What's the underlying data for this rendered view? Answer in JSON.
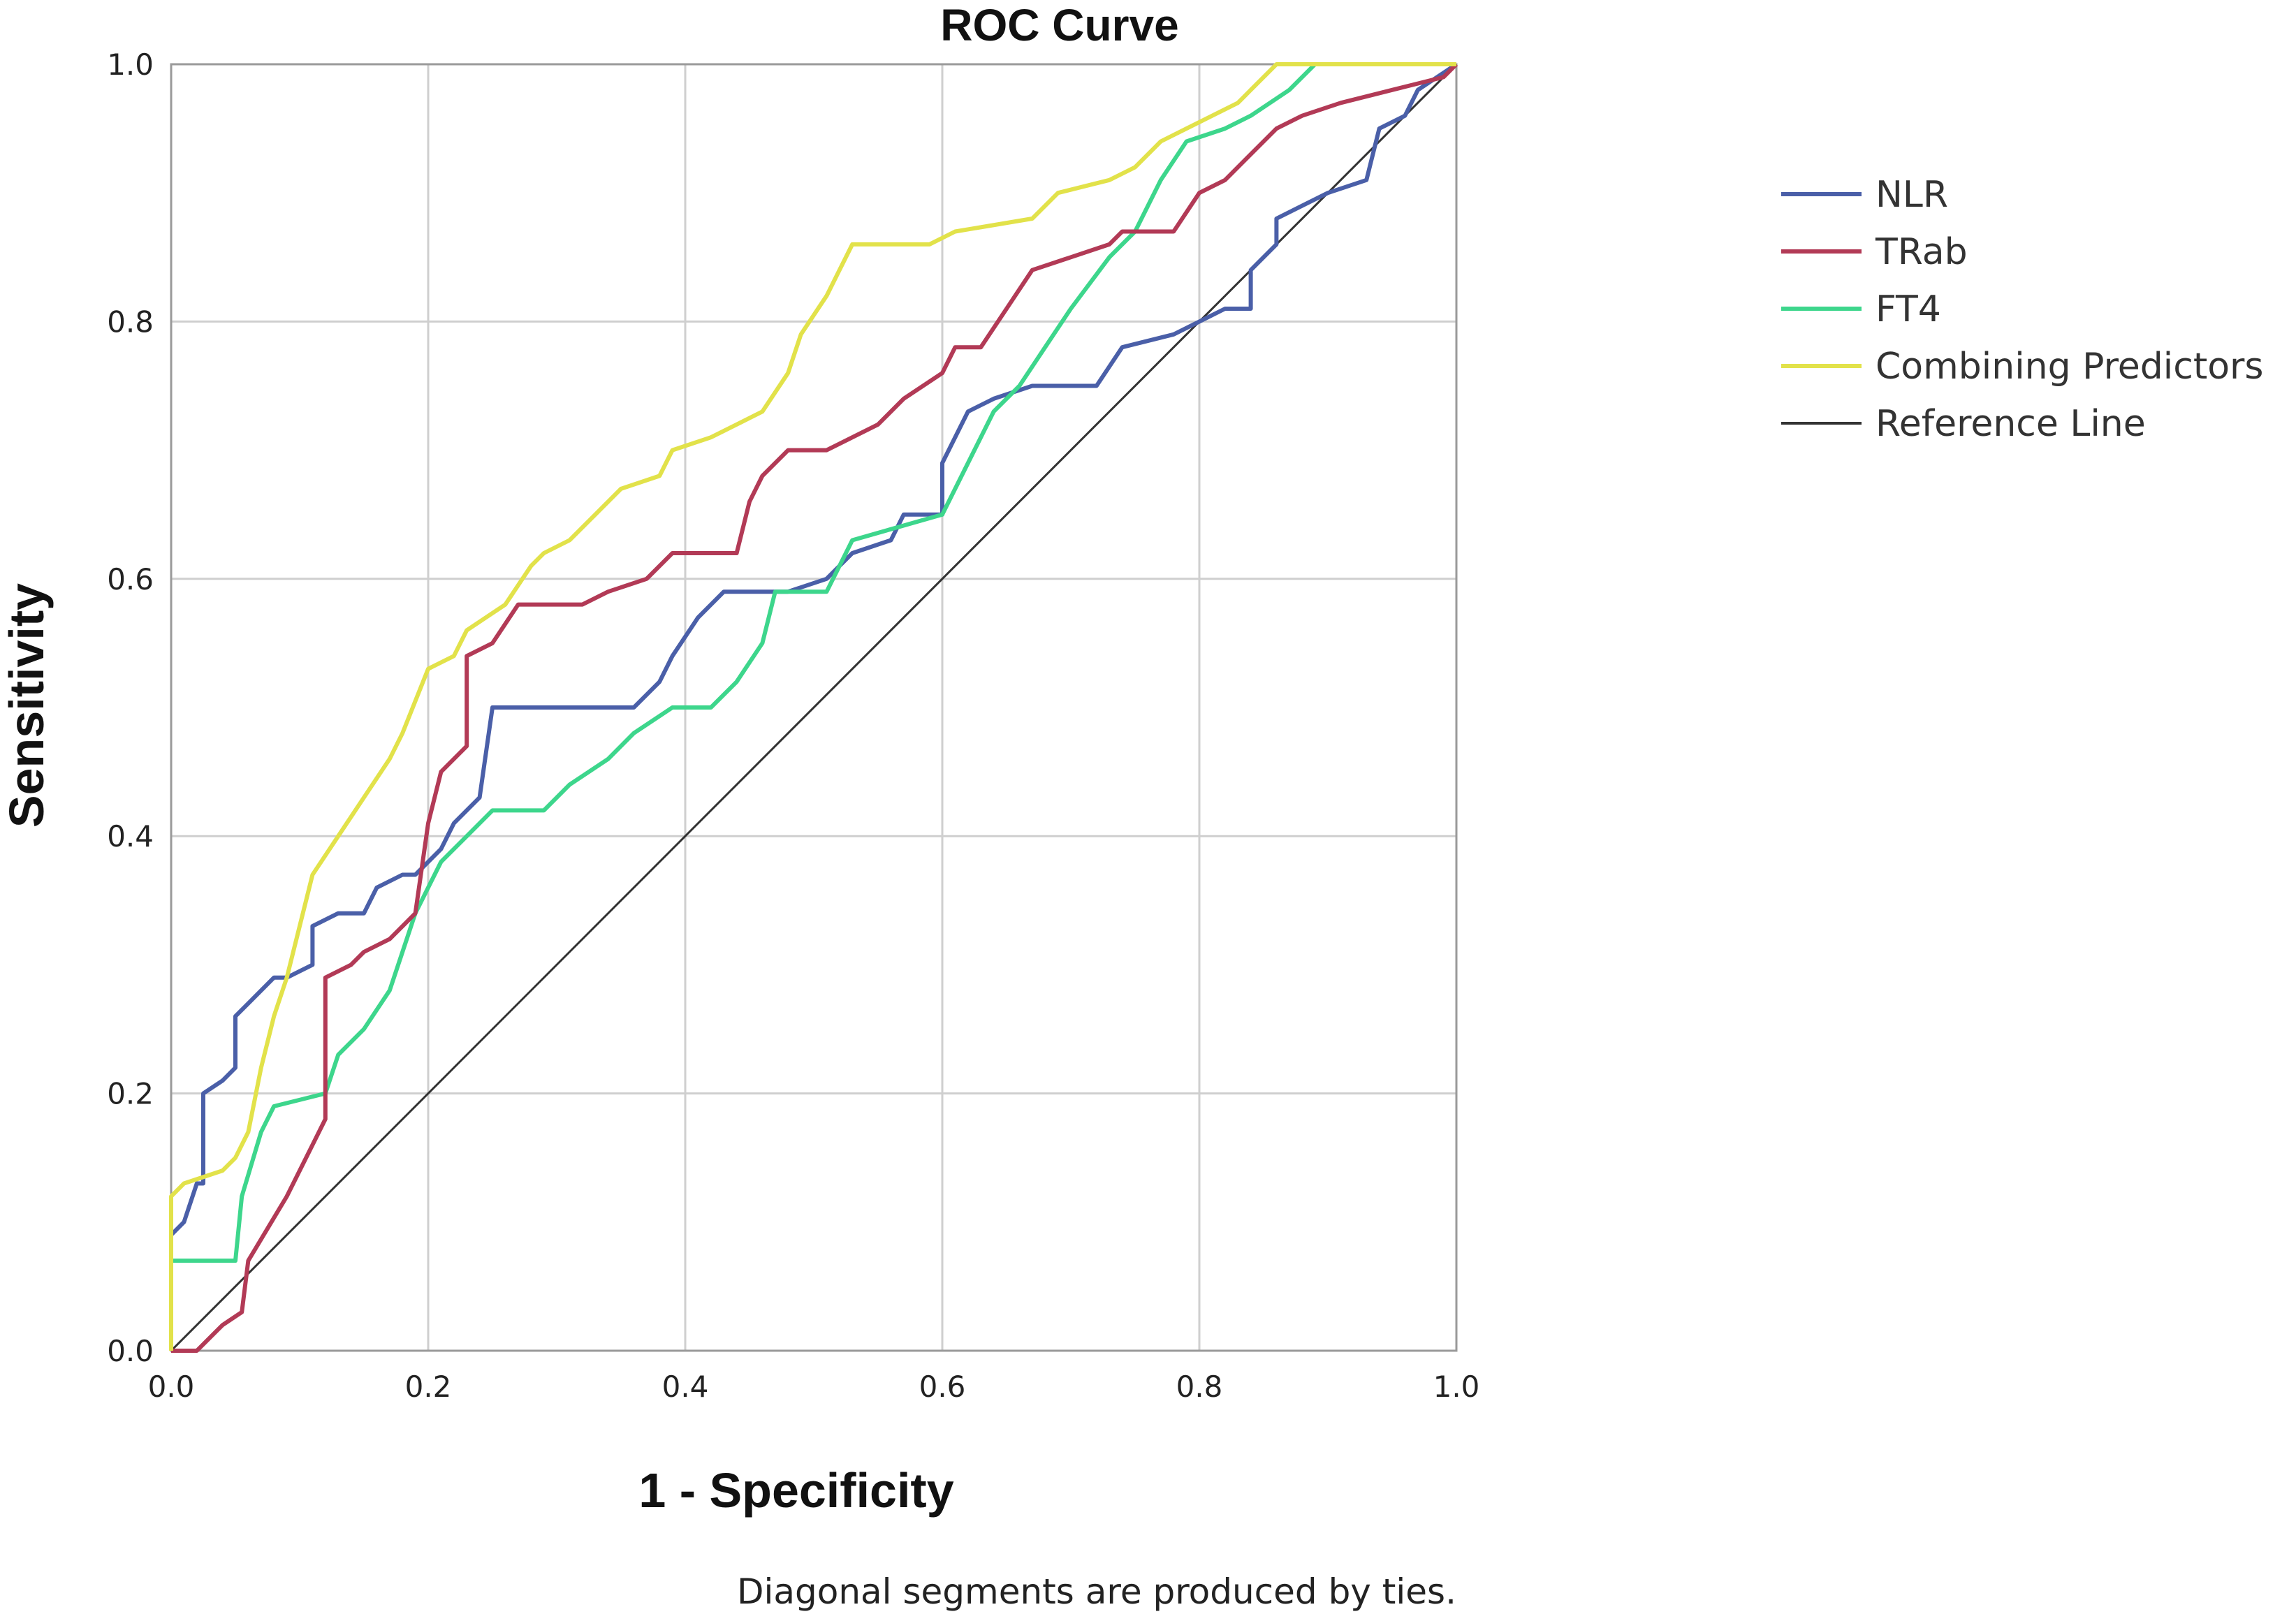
{
  "chart_data": {
    "type": "line",
    "title": "ROC Curve",
    "xlabel": "1 - Specificity",
    "ylabel": "Sensitivity",
    "xlim": [
      0,
      1
    ],
    "ylim": [
      0,
      1
    ],
    "x_ticks": [
      "0.0",
      "0.2",
      "0.4",
      "0.6",
      "0.8",
      "1.0"
    ],
    "y_ticks": [
      "0.0",
      "0.2",
      "0.4",
      "0.6",
      "0.8",
      "1.0"
    ],
    "grid": true,
    "legend_position": "right",
    "footnote": "Diagonal segments are produced by ties.",
    "series": [
      {
        "name": "NLR",
        "color": "#4a5fa8",
        "points": [
          [
            0,
            0
          ],
          [
            0,
            0.09
          ],
          [
            0.01,
            0.1
          ],
          [
            0.02,
            0.13
          ],
          [
            0.025,
            0.13
          ],
          [
            0.025,
            0.2
          ],
          [
            0.04,
            0.21
          ],
          [
            0.05,
            0.22
          ],
          [
            0.05,
            0.26
          ],
          [
            0.06,
            0.27
          ],
          [
            0.07,
            0.28
          ],
          [
            0.08,
            0.29
          ],
          [
            0.09,
            0.29
          ],
          [
            0.11,
            0.3
          ],
          [
            0.11,
            0.33
          ],
          [
            0.13,
            0.34
          ],
          [
            0.15,
            0.34
          ],
          [
            0.16,
            0.36
          ],
          [
            0.18,
            0.37
          ],
          [
            0.19,
            0.37
          ],
          [
            0.21,
            0.39
          ],
          [
            0.22,
            0.41
          ],
          [
            0.24,
            0.43
          ],
          [
            0.25,
            0.5
          ],
          [
            0.3,
            0.5
          ],
          [
            0.36,
            0.5
          ],
          [
            0.38,
            0.52
          ],
          [
            0.39,
            0.54
          ],
          [
            0.41,
            0.57
          ],
          [
            0.43,
            0.59
          ],
          [
            0.48,
            0.59
          ],
          [
            0.51,
            0.6
          ],
          [
            0.53,
            0.62
          ],
          [
            0.56,
            0.63
          ],
          [
            0.57,
            0.65
          ],
          [
            0.6,
            0.65
          ],
          [
            0.6,
            0.69
          ],
          [
            0.62,
            0.73
          ],
          [
            0.64,
            0.74
          ],
          [
            0.67,
            0.75
          ],
          [
            0.72,
            0.75
          ],
          [
            0.74,
            0.78
          ],
          [
            0.78,
            0.79
          ],
          [
            0.8,
            0.8
          ],
          [
            0.82,
            0.81
          ],
          [
            0.84,
            0.81
          ],
          [
            0.84,
            0.84
          ],
          [
            0.86,
            0.86
          ],
          [
            0.86,
            0.88
          ],
          [
            0.88,
            0.89
          ],
          [
            0.9,
            0.9
          ],
          [
            0.93,
            0.91
          ],
          [
            0.94,
            0.95
          ],
          [
            0.96,
            0.96
          ],
          [
            0.97,
            0.98
          ],
          [
            1.0,
            1.0
          ]
        ]
      },
      {
        "name": "TRab",
        "color": "#b23a56",
        "points": [
          [
            0,
            0
          ],
          [
            0.02,
            0
          ],
          [
            0.04,
            0.02
          ],
          [
            0.055,
            0.03
          ],
          [
            0.06,
            0.07
          ],
          [
            0.09,
            0.12
          ],
          [
            0.11,
            0.16
          ],
          [
            0.12,
            0.18
          ],
          [
            0.12,
            0.29
          ],
          [
            0.14,
            0.3
          ],
          [
            0.15,
            0.31
          ],
          [
            0.17,
            0.32
          ],
          [
            0.19,
            0.34
          ],
          [
            0.2,
            0.41
          ],
          [
            0.21,
            0.45
          ],
          [
            0.23,
            0.47
          ],
          [
            0.23,
            0.54
          ],
          [
            0.25,
            0.55
          ],
          [
            0.27,
            0.58
          ],
          [
            0.32,
            0.58
          ],
          [
            0.34,
            0.59
          ],
          [
            0.37,
            0.6
          ],
          [
            0.39,
            0.62
          ],
          [
            0.44,
            0.62
          ],
          [
            0.45,
            0.66
          ],
          [
            0.46,
            0.68
          ],
          [
            0.48,
            0.7
          ],
          [
            0.51,
            0.7
          ],
          [
            0.53,
            0.71
          ],
          [
            0.55,
            0.72
          ],
          [
            0.57,
            0.74
          ],
          [
            0.6,
            0.76
          ],
          [
            0.61,
            0.78
          ],
          [
            0.63,
            0.78
          ],
          [
            0.65,
            0.81
          ],
          [
            0.67,
            0.84
          ],
          [
            0.7,
            0.85
          ],
          [
            0.73,
            0.86
          ],
          [
            0.74,
            0.87
          ],
          [
            0.78,
            0.87
          ],
          [
            0.8,
            0.9
          ],
          [
            0.82,
            0.91
          ],
          [
            0.84,
            0.93
          ],
          [
            0.86,
            0.95
          ],
          [
            0.88,
            0.96
          ],
          [
            0.91,
            0.97
          ],
          [
            0.95,
            0.98
          ],
          [
            0.99,
            0.99
          ],
          [
            1.0,
            1.0
          ]
        ]
      },
      {
        "name": "FT4",
        "color": "#3dd68c",
        "points": [
          [
            0,
            0
          ],
          [
            0,
            0.07
          ],
          [
            0.05,
            0.07
          ],
          [
            0.055,
            0.12
          ],
          [
            0.07,
            0.17
          ],
          [
            0.08,
            0.19
          ],
          [
            0.12,
            0.2
          ],
          [
            0.13,
            0.23
          ],
          [
            0.15,
            0.25
          ],
          [
            0.17,
            0.28
          ],
          [
            0.18,
            0.31
          ],
          [
            0.19,
            0.34
          ],
          [
            0.21,
            0.38
          ],
          [
            0.23,
            0.4
          ],
          [
            0.25,
            0.42
          ],
          [
            0.29,
            0.42
          ],
          [
            0.31,
            0.44
          ],
          [
            0.34,
            0.46
          ],
          [
            0.36,
            0.48
          ],
          [
            0.39,
            0.5
          ],
          [
            0.42,
            0.5
          ],
          [
            0.44,
            0.52
          ],
          [
            0.46,
            0.55
          ],
          [
            0.47,
            0.59
          ],
          [
            0.51,
            0.59
          ],
          [
            0.53,
            0.63
          ],
          [
            0.6,
            0.65
          ],
          [
            0.62,
            0.69
          ],
          [
            0.64,
            0.73
          ],
          [
            0.66,
            0.75
          ],
          [
            0.68,
            0.78
          ],
          [
            0.7,
            0.81
          ],
          [
            0.73,
            0.85
          ],
          [
            0.75,
            0.87
          ],
          [
            0.77,
            0.91
          ],
          [
            0.79,
            0.94
          ],
          [
            0.82,
            0.95
          ],
          [
            0.84,
            0.96
          ],
          [
            0.87,
            0.98
          ],
          [
            0.89,
            1.0
          ],
          [
            1.0,
            1.0
          ]
        ]
      },
      {
        "name": "Combining Predictors",
        "color": "#e2e24a",
        "points": [
          [
            0,
            0
          ],
          [
            0,
            0.12
          ],
          [
            0.01,
            0.13
          ],
          [
            0.04,
            0.14
          ],
          [
            0.05,
            0.15
          ],
          [
            0.06,
            0.17
          ],
          [
            0.07,
            0.22
          ],
          [
            0.08,
            0.26
          ],
          [
            0.09,
            0.29
          ],
          [
            0.1,
            0.33
          ],
          [
            0.11,
            0.37
          ],
          [
            0.13,
            0.4
          ],
          [
            0.15,
            0.43
          ],
          [
            0.17,
            0.46
          ],
          [
            0.18,
            0.48
          ],
          [
            0.2,
            0.53
          ],
          [
            0.22,
            0.54
          ],
          [
            0.23,
            0.56
          ],
          [
            0.26,
            0.58
          ],
          [
            0.28,
            0.61
          ],
          [
            0.29,
            0.62
          ],
          [
            0.31,
            0.63
          ],
          [
            0.33,
            0.65
          ],
          [
            0.35,
            0.67
          ],
          [
            0.38,
            0.68
          ],
          [
            0.39,
            0.7
          ],
          [
            0.42,
            0.71
          ],
          [
            0.44,
            0.72
          ],
          [
            0.46,
            0.73
          ],
          [
            0.48,
            0.76
          ],
          [
            0.49,
            0.79
          ],
          [
            0.51,
            0.82
          ],
          [
            0.52,
            0.84
          ],
          [
            0.53,
            0.86
          ],
          [
            0.59,
            0.86
          ],
          [
            0.61,
            0.87
          ],
          [
            0.67,
            0.88
          ],
          [
            0.68,
            0.89
          ],
          [
            0.69,
            0.9
          ],
          [
            0.73,
            0.91
          ],
          [
            0.75,
            0.92
          ],
          [
            0.77,
            0.94
          ],
          [
            0.79,
            0.95
          ],
          [
            0.81,
            0.96
          ],
          [
            0.83,
            0.97
          ],
          [
            0.84,
            0.98
          ],
          [
            0.86,
            1.0
          ],
          [
            1.0,
            1.0
          ]
        ]
      },
      {
        "name": "Reference Line",
        "color": "#333333",
        "points": [
          [
            0,
            0
          ],
          [
            1,
            1
          ]
        ]
      }
    ]
  }
}
